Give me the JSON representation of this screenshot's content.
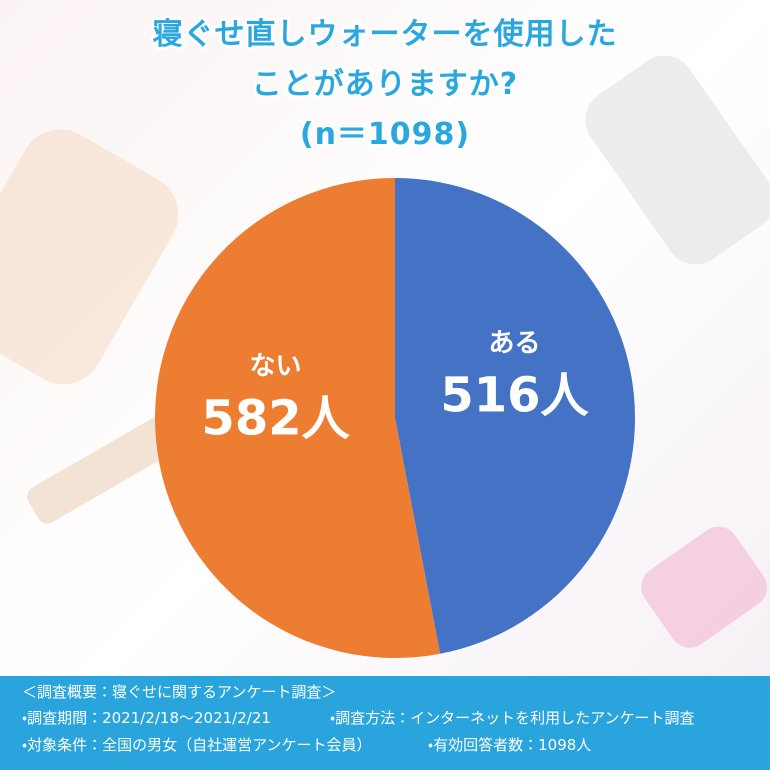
{
  "chart_data": {
    "type": "pie",
    "title": [
      "寝ぐせ直しウォーターを使用した",
      "ことがありますか?"
    ],
    "subtitle": "(n＝1098)",
    "categories": [
      "ある",
      "ない"
    ],
    "values": [
      516,
      582
    ],
    "value_labels": [
      "516人",
      "582人"
    ],
    "colors": [
      "#4472c4",
      "#ed7d31"
    ]
  },
  "footer": {
    "heading": "＜調査概要：寝ぐせに関するアンケート調査＞",
    "rows": [
      [
        "・調査期間：2021/2/18～2021/2/21",
        "・調査方法：インターネットを利用したアンケート調査"
      ],
      [
        "・対象条件：全国の男女（自社運営アンケート会員）",
        "・有効回答者数：1098人"
      ]
    ]
  }
}
